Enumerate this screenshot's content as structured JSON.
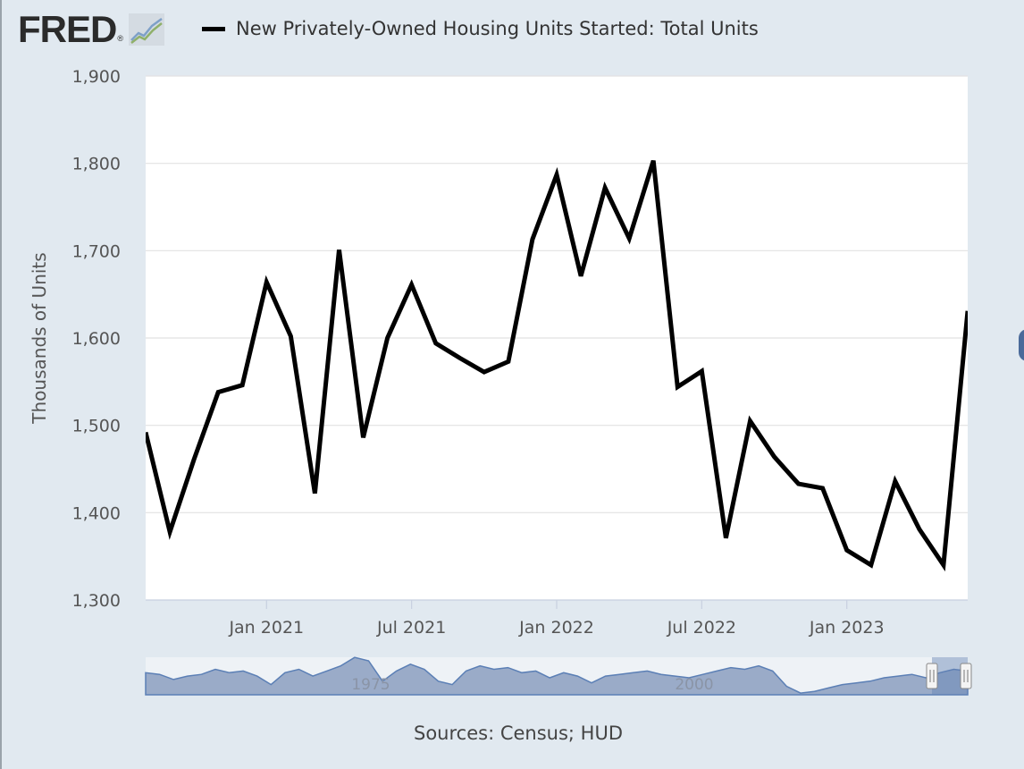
{
  "logo": {
    "text": "FRED",
    "reg": "®"
  },
  "legend": {
    "label": "New Privately-Owned Housing Units Started: Total Units"
  },
  "sources": "Sources: Census; HUD",
  "colors": {
    "background": "#e1e9f0",
    "plot_background": "#ffffff",
    "line": "#000000",
    "navigator_fill": "#9aabc8",
    "navigator_line": "#5b7fb5"
  },
  "chart_data": {
    "type": "line",
    "title": "",
    "ylabel": "Thousands of Units",
    "xlabel": "",
    "ylim": [
      1300,
      1900
    ],
    "yticks": [
      1300,
      1400,
      1500,
      1600,
      1700,
      1800,
      1900
    ],
    "ytick_labels": [
      "1,300",
      "1,400",
      "1,500",
      "1,600",
      "1,700",
      "1,800",
      "1,900"
    ],
    "x_range": [
      "2020-08",
      "2023-06"
    ],
    "xticks": [
      "2021-01",
      "2021-07",
      "2022-01",
      "2022-07",
      "2023-01"
    ],
    "xtick_labels": [
      "Jan 2021",
      "Jul 2021",
      "Jan 2022",
      "Jul 2022",
      "Jan 2023"
    ],
    "grid": true,
    "legend_position": "top",
    "series": [
      {
        "name": "New Privately-Owned Housing Units Started: Total Units",
        "x": [
          "2020-08",
          "2020-09",
          "2020-10",
          "2020-11",
          "2020-12",
          "2021-01",
          "2021-02",
          "2021-03",
          "2021-04",
          "2021-05",
          "2021-06",
          "2021-07",
          "2021-08",
          "2021-09",
          "2021-10",
          "2021-11",
          "2021-12",
          "2022-01",
          "2022-02",
          "2022-03",
          "2022-04",
          "2022-05",
          "2022-06",
          "2022-07",
          "2022-08",
          "2022-09",
          "2022-10",
          "2022-11",
          "2022-12",
          "2023-01",
          "2023-02",
          "2023-03",
          "2023-04",
          "2023-05",
          "2023-06"
        ],
        "values": [
          1492,
          1378,
          1461,
          1538,
          1546,
          1664,
          1602,
          1422,
          1701,
          1486,
          1600,
          1661,
          1594,
          1577,
          1561,
          1573,
          1713,
          1787,
          1671,
          1772,
          1714,
          1803,
          1544,
          1562,
          1371,
          1505,
          1464,
          1433,
          1428,
          1357,
          1340,
          1436,
          1381,
          1340,
          1631
        ]
      }
    ],
    "navigator": {
      "tick_labels": [
        "1975",
        "2000"
      ]
    }
  }
}
